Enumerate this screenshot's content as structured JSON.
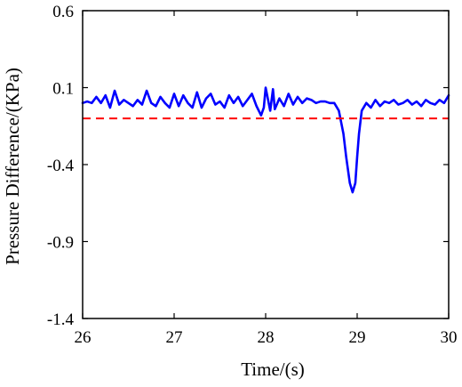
{
  "chart_data": {
    "type": "line",
    "xlabel": "Time/(s)",
    "ylabel": "Pressure Difference/(KPa)",
    "xlim": [
      26,
      30
    ],
    "ylim": [
      -1.4,
      0.6
    ],
    "x_ticks": [
      26,
      27,
      28,
      29,
      30
    ],
    "x_tick_labels": [
      "26",
      "27",
      "28",
      "29",
      "30"
    ],
    "y_ticks": [
      0.6,
      0.1,
      -0.4,
      -0.9,
      -1.4
    ],
    "y_tick_labels": [
      "0.6",
      "0.1",
      "-0.4",
      "-0.9",
      "-1.4"
    ],
    "grid": false,
    "series": [
      {
        "color": "#0000ff",
        "style": "solid",
        "x": [
          26.0,
          26.05,
          26.1,
          26.15,
          26.2,
          26.25,
          26.3,
          26.35,
          26.4,
          26.45,
          26.5,
          26.55,
          26.6,
          26.65,
          26.7,
          26.75,
          26.8,
          26.85,
          26.9,
          26.95,
          27.0,
          27.05,
          27.1,
          27.15,
          27.2,
          27.25,
          27.3,
          27.35,
          27.4,
          27.45,
          27.5,
          27.55,
          27.6,
          27.65,
          27.7,
          27.75,
          27.8,
          27.85,
          27.9,
          27.95,
          27.98,
          28.0,
          28.05,
          28.08,
          28.1,
          28.15,
          28.2,
          28.25,
          28.3,
          28.35,
          28.4,
          28.45,
          28.5,
          28.55,
          28.6,
          28.65,
          28.7,
          28.75,
          28.8,
          28.85,
          28.88,
          28.92,
          28.95,
          28.98,
          29.0,
          29.02,
          29.05,
          29.1,
          29.15,
          29.2,
          29.25,
          29.3,
          29.35,
          29.4,
          29.45,
          29.5,
          29.55,
          29.6,
          29.65,
          29.7,
          29.75,
          29.8,
          29.85,
          29.9,
          29.95,
          30.0
        ],
        "y": [
          0.0,
          0.01,
          0.0,
          0.04,
          0.0,
          0.05,
          -0.03,
          0.08,
          -0.01,
          0.02,
          0.0,
          -0.02,
          0.02,
          -0.01,
          0.08,
          0.0,
          -0.02,
          0.04,
          0.0,
          -0.03,
          0.06,
          -0.02,
          0.05,
          0.0,
          -0.03,
          0.07,
          -0.03,
          0.03,
          0.06,
          -0.01,
          0.01,
          -0.03,
          0.05,
          0.0,
          0.04,
          -0.02,
          0.02,
          0.06,
          -0.02,
          -0.08,
          -0.03,
          0.1,
          -0.05,
          0.09,
          -0.04,
          0.03,
          -0.02,
          0.06,
          -0.01,
          0.04,
          0.0,
          0.03,
          0.02,
          0.0,
          0.01,
          0.01,
          0.0,
          0.0,
          -0.05,
          -0.2,
          -0.35,
          -0.52,
          -0.58,
          -0.52,
          -0.35,
          -0.2,
          -0.05,
          0.0,
          -0.03,
          0.02,
          -0.02,
          0.01,
          0.0,
          0.02,
          -0.01,
          0.0,
          0.02,
          -0.01,
          0.01,
          -0.02,
          0.02,
          0.0,
          -0.01,
          0.02,
          0.0,
          0.05
        ]
      },
      {
        "color": "#ff0000",
        "style": "dashed",
        "x": [
          26,
          30
        ],
        "y": [
          -0.1,
          -0.1
        ]
      }
    ]
  }
}
